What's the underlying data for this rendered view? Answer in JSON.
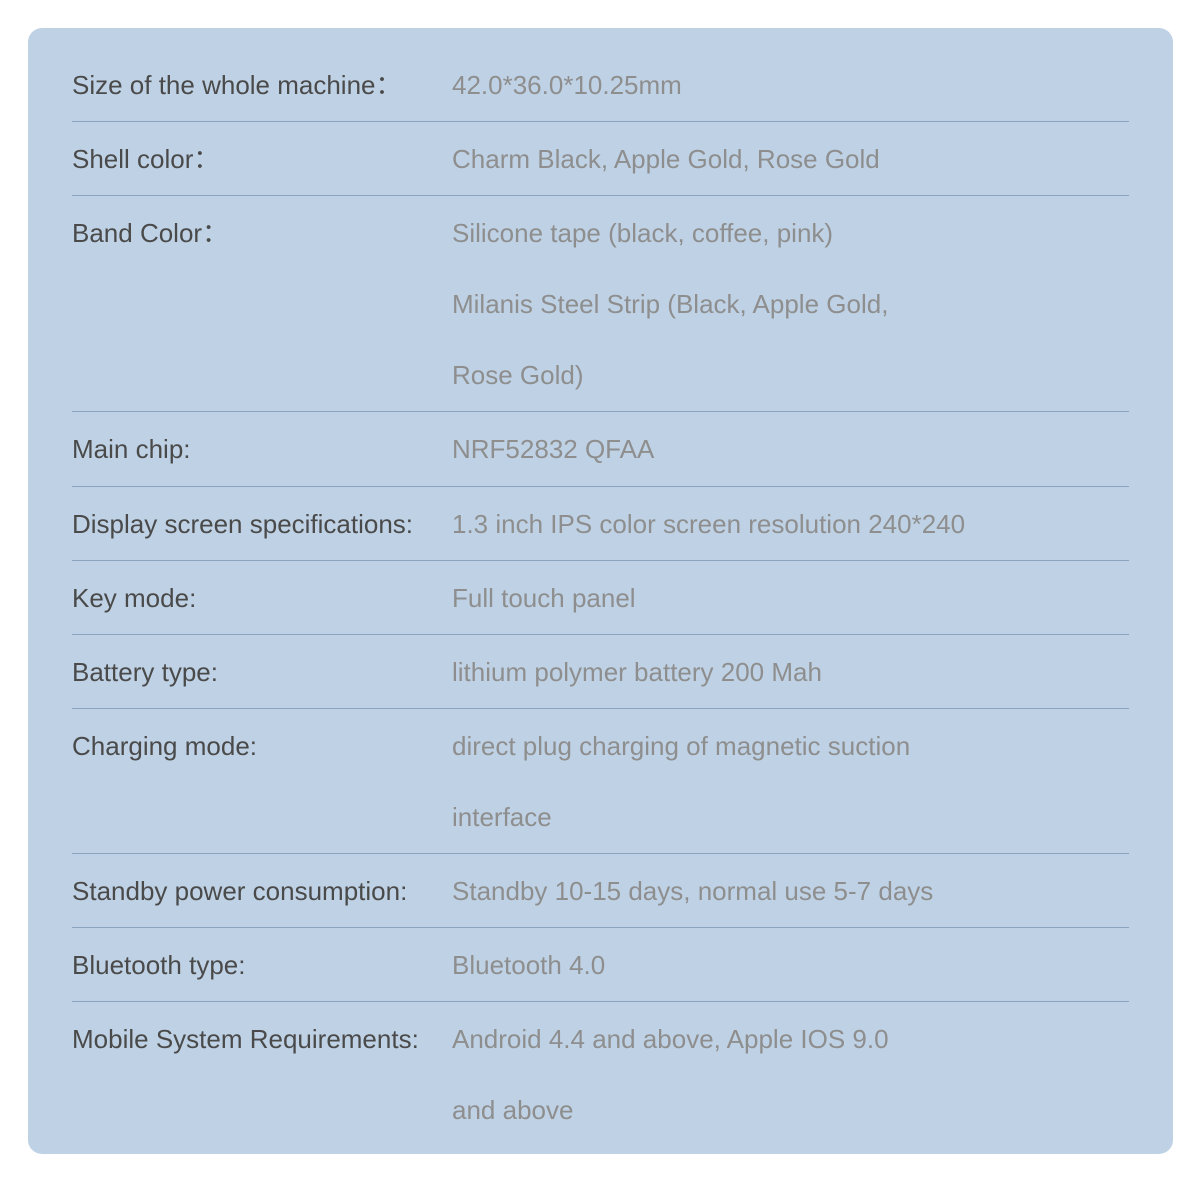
{
  "card": {
    "background_color": "#bfd2e5",
    "divider_color": "#8aa4bf",
    "label_color": "#4a4a4a",
    "value_color": "#8e8e8e",
    "font_size_pt": 26
  },
  "specs": [
    {
      "label": "Size of the whole machine：",
      "lines": [
        "42.0*36.0*10.25mm"
      ]
    },
    {
      "label": "Shell color：",
      "lines": [
        "Charm Black, Apple Gold, Rose Gold"
      ]
    },
    {
      "label": "Band Color：",
      "lines": [
        "Silicone tape (black, coffee, pink)",
        "Milanis Steel Strip (Black, Apple Gold,",
        "Rose Gold)"
      ]
    },
    {
      "label": "Main chip:",
      "lines": [
        "NRF52832 QFAA"
      ]
    },
    {
      "label": "Display screen specifications:",
      "lines": [
        "1.3 inch IPS color screen resolution 240*240"
      ]
    },
    {
      "label": "Key mode:",
      "lines": [
        "Full touch panel"
      ]
    },
    {
      "label": "Battery type:",
      "lines": [
        "lithium polymer battery 200 Mah"
      ]
    },
    {
      "label": "Charging mode:",
      "lines": [
        "direct plug charging of magnetic suction",
        "interface"
      ]
    },
    {
      "label": "Standby power consumption:",
      "lines": [
        "Standby 10-15 days, normal use 5-7 days"
      ]
    },
    {
      "label": "Bluetooth type:",
      "lines": [
        "Bluetooth 4.0"
      ]
    },
    {
      "label": "Mobile System Requirements:",
      "lines": [
        "Android 4.4 and above, Apple IOS 9.0",
        "and above"
      ]
    }
  ]
}
